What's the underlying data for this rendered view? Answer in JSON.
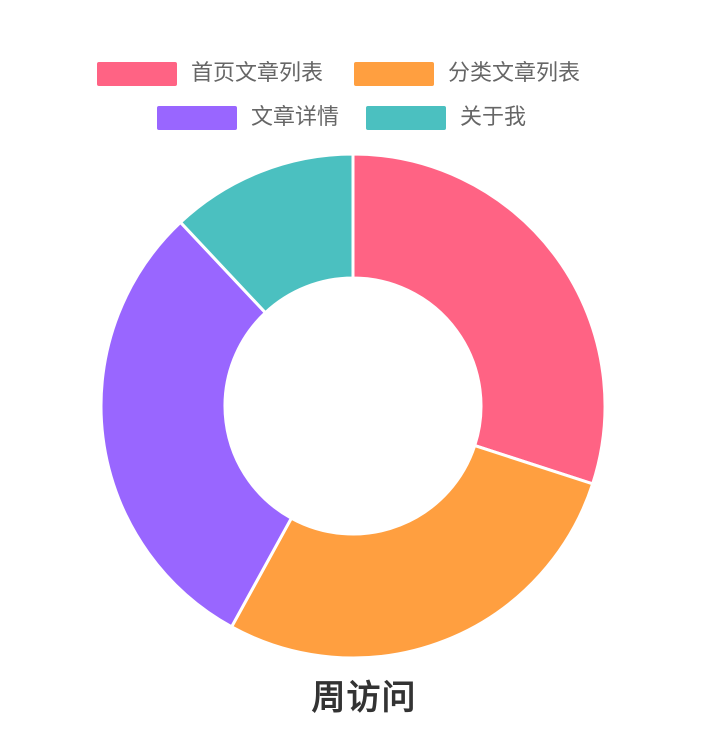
{
  "chart_data": {
    "type": "pie",
    "title": "周访问",
    "categories": [
      "首页文章列表",
      "分类文章列表",
      "文章详情",
      "关于我"
    ],
    "values": [
      30,
      28,
      30,
      12
    ],
    "colors": [
      "#ff6384",
      "#ff9f40",
      "#9966ff",
      "#4bc0c0"
    ],
    "legend_position": "top",
    "donut": true
  }
}
